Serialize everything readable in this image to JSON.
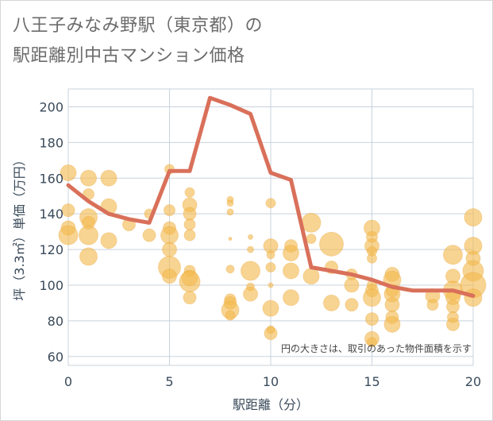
{
  "title_line1": "八王子みなみ野駅（東京都）の",
  "title_line2": "駅距離別中古マンション価格",
  "note": "円の大きさは、取引のあった物件面積を示す",
  "colors": {
    "bubble": "#f3b94f",
    "line": "#d9705a",
    "grid": "#c9d3dd",
    "axis_text": "#3a4a5a"
  },
  "chart_data": {
    "type": "scatter",
    "xlabel": "駅距離（分）",
    "ylabel": "坪（3.3㎡）単価（万円）",
    "xlim": [
      0,
      20
    ],
    "ylim": [
      55,
      210
    ],
    "x_ticks": [
      0,
      5,
      10,
      15,
      20
    ],
    "y_ticks": [
      60,
      80,
      100,
      120,
      140,
      160,
      180,
      200
    ],
    "grid": true,
    "series": [
      {
        "type": "scatter",
        "points": [
          {
            "x": 0,
            "y": 163,
            "s": 10
          },
          {
            "x": 0,
            "y": 142,
            "s": 8
          },
          {
            "x": 0,
            "y": 132,
            "s": 9
          },
          {
            "x": 0,
            "y": 128,
            "s": 12
          },
          {
            "x": 1,
            "y": 160,
            "s": 10
          },
          {
            "x": 1,
            "y": 151,
            "s": 7
          },
          {
            "x": 1,
            "y": 138,
            "s": 11
          },
          {
            "x": 1,
            "y": 135,
            "s": 8
          },
          {
            "x": 1,
            "y": 128,
            "s": 12
          },
          {
            "x": 1,
            "y": 116,
            "s": 11
          },
          {
            "x": 2,
            "y": 160,
            "s": 10
          },
          {
            "x": 2,
            "y": 144,
            "s": 10
          },
          {
            "x": 2,
            "y": 125,
            "s": 10
          },
          {
            "x": 3,
            "y": 134,
            "s": 8
          },
          {
            "x": 4,
            "y": 140,
            "s": 6
          },
          {
            "x": 4,
            "y": 128,
            "s": 8
          },
          {
            "x": 5,
            "y": 165,
            "s": 6
          },
          {
            "x": 5,
            "y": 142,
            "s": 7
          },
          {
            "x": 5,
            "y": 132,
            "s": 8
          },
          {
            "x": 5,
            "y": 128,
            "s": 11
          },
          {
            "x": 5,
            "y": 120,
            "s": 9
          },
          {
            "x": 5,
            "y": 110,
            "s": 14
          },
          {
            "x": 5,
            "y": 105,
            "s": 9
          },
          {
            "x": 6,
            "y": 152,
            "s": 6
          },
          {
            "x": 6,
            "y": 145,
            "s": 9
          },
          {
            "x": 6,
            "y": 140,
            "s": 8
          },
          {
            "x": 6,
            "y": 134,
            "s": 7
          },
          {
            "x": 6,
            "y": 128,
            "s": 7
          },
          {
            "x": 6,
            "y": 108,
            "s": 7
          },
          {
            "x": 6,
            "y": 104,
            "s": 10
          },
          {
            "x": 6,
            "y": 102,
            "s": 13
          },
          {
            "x": 6,
            "y": 93,
            "s": 8
          },
          {
            "x": 8,
            "y": 148,
            "s": 4
          },
          {
            "x": 8,
            "y": 146,
            "s": 4
          },
          {
            "x": 8,
            "y": 141,
            "s": 4
          },
          {
            "x": 8,
            "y": 126,
            "s": 2
          },
          {
            "x": 8,
            "y": 109,
            "s": 5
          },
          {
            "x": 8,
            "y": 92,
            "s": 7
          },
          {
            "x": 8,
            "y": 90,
            "s": 8
          },
          {
            "x": 8,
            "y": 86,
            "s": 11
          },
          {
            "x": 8,
            "y": 83,
            "s": 6
          },
          {
            "x": 9,
            "y": 127,
            "s": 3
          },
          {
            "x": 9,
            "y": 120,
            "s": 4
          },
          {
            "x": 9,
            "y": 108,
            "s": 12
          },
          {
            "x": 9,
            "y": 99,
            "s": 5
          },
          {
            "x": 9,
            "y": 95,
            "s": 9
          },
          {
            "x": 10,
            "y": 146,
            "s": 6
          },
          {
            "x": 10,
            "y": 122,
            "s": 9
          },
          {
            "x": 10,
            "y": 117,
            "s": 5
          },
          {
            "x": 10,
            "y": 110,
            "s": 6
          },
          {
            "x": 10,
            "y": 100,
            "s": 3
          },
          {
            "x": 10,
            "y": 87,
            "s": 10
          },
          {
            "x": 10,
            "y": 75,
            "s": 5
          },
          {
            "x": 10,
            "y": 73,
            "s": 8
          },
          {
            "x": 11,
            "y": 122,
            "s": 8
          },
          {
            "x": 11,
            "y": 118,
            "s": 10
          },
          {
            "x": 11,
            "y": 108,
            "s": 10
          },
          {
            "x": 11,
            "y": 93,
            "s": 10
          },
          {
            "x": 12,
            "y": 135,
            "s": 12
          },
          {
            "x": 12,
            "y": 126,
            "s": 6
          },
          {
            "x": 12,
            "y": 105,
            "s": 10
          },
          {
            "x": 13,
            "y": 123,
            "s": 15
          },
          {
            "x": 13,
            "y": 110,
            "s": 8
          },
          {
            "x": 13,
            "y": 90,
            "s": 10
          },
          {
            "x": 14,
            "y": 106,
            "s": 7
          },
          {
            "x": 14,
            "y": 100,
            "s": 9
          },
          {
            "x": 14,
            "y": 89,
            "s": 8
          },
          {
            "x": 15,
            "y": 132,
            "s": 10
          },
          {
            "x": 15,
            "y": 127,
            "s": 7
          },
          {
            "x": 15,
            "y": 122,
            "s": 9
          },
          {
            "x": 15,
            "y": 119,
            "s": 6
          },
          {
            "x": 15,
            "y": 115,
            "s": 6
          },
          {
            "x": 15,
            "y": 100,
            "s": 6
          },
          {
            "x": 15,
            "y": 97,
            "s": 8
          },
          {
            "x": 15,
            "y": 93,
            "s": 11
          },
          {
            "x": 15,
            "y": 81,
            "s": 8
          },
          {
            "x": 15,
            "y": 70,
            "s": 9
          },
          {
            "x": 15,
            "y": 68,
            "s": 6
          },
          {
            "x": 16,
            "y": 106,
            "s": 9
          },
          {
            "x": 16,
            "y": 103,
            "s": 11
          },
          {
            "x": 16,
            "y": 97,
            "s": 8
          },
          {
            "x": 16,
            "y": 95,
            "s": 10
          },
          {
            "x": 16,
            "y": 89,
            "s": 9
          },
          {
            "x": 16,
            "y": 82,
            "s": 8
          },
          {
            "x": 16,
            "y": 78,
            "s": 10
          },
          {
            "x": 18,
            "y": 94,
            "s": 9
          },
          {
            "x": 18,
            "y": 89,
            "s": 7
          },
          {
            "x": 19,
            "y": 117,
            "s": 12
          },
          {
            "x": 19,
            "y": 105,
            "s": 9
          },
          {
            "x": 19,
            "y": 97,
            "s": 12
          },
          {
            "x": 19,
            "y": 93,
            "s": 9
          },
          {
            "x": 19,
            "y": 88,
            "s": 8
          },
          {
            "x": 19,
            "y": 82,
            "s": 7
          },
          {
            "x": 19,
            "y": 78,
            "s": 8
          },
          {
            "x": 20,
            "y": 138,
            "s": 11
          },
          {
            "x": 20,
            "y": 122,
            "s": 11
          },
          {
            "x": 20,
            "y": 115,
            "s": 9
          },
          {
            "x": 20,
            "y": 108,
            "s": 13
          },
          {
            "x": 20,
            "y": 100,
            "s": 16
          },
          {
            "x": 20,
            "y": 93,
            "s": 11
          }
        ]
      },
      {
        "type": "line",
        "x": [
          0,
          1,
          2,
          3,
          4,
          5,
          6,
          7,
          8,
          9,
          10,
          11,
          12,
          13,
          14,
          15,
          16,
          17,
          18,
          19,
          20
        ],
        "y": [
          156,
          147,
          140,
          137,
          135,
          164,
          164,
          205,
          201,
          196,
          163,
          159,
          110,
          108,
          106,
          103,
          99,
          97,
          97,
          97,
          94
        ]
      }
    ]
  }
}
